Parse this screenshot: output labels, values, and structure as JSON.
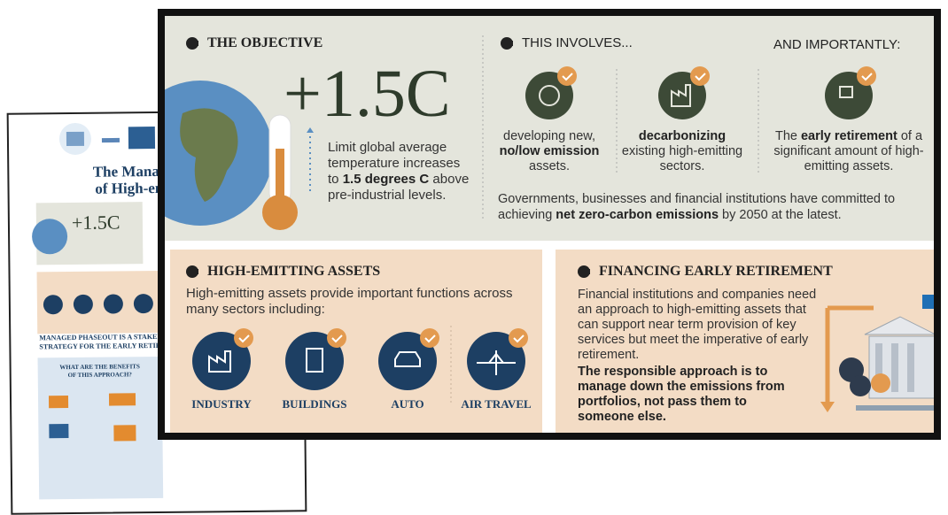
{
  "back_page": {
    "title_lines": [
      "The Manage",
      "of High-emi"
    ],
    "stat": "+1.5C",
    "banner_lines": [
      "MANAGED PHASEOUT IS A STAKEHO",
      "STRATEGY FOR THE EARLY RETIRE"
    ],
    "benefits_heading": [
      "WHAT ARE THE BENEFITS",
      "OF THIS APPROACH?"
    ]
  },
  "objective": {
    "heading": "THE OBJECTIVE",
    "stat": "+1.5C",
    "text": [
      {
        "text": "Limit global average temperature increases to "
      },
      {
        "text": "1.5 degrees C",
        "bold": true
      },
      {
        "text": " above pre-industrial levels."
      }
    ]
  },
  "involves": {
    "heading": "THIS INVOLVES...",
    "heading_right": "AND IMPORTANTLY:",
    "items": [
      [
        {
          "text": "developing new, "
        },
        {
          "text": "no/low emission",
          "bold": true
        },
        {
          "text": " assets."
        }
      ],
      [
        {
          "text": "decarbonizing",
          "bold": true
        },
        {
          "text": " existing high-emitting sectors."
        }
      ],
      [
        {
          "text": "The "
        },
        {
          "text": "early retirement",
          "bold": true
        },
        {
          "text": " of a significant amount of high-emitting assets."
        }
      ]
    ],
    "footer": [
      {
        "text": "Governments, businesses and financial institutions have committed to achieving "
      },
      {
        "text": "net zero-carbon emissions",
        "bold": true
      },
      {
        "text": " by 2050 at the latest."
      }
    ]
  },
  "high_emitting": {
    "heading": "HIGH-EMITTING ASSETS",
    "text": "High-emitting assets provide important functions across many sectors including:",
    "sectors": [
      "INDUSTRY",
      "BUILDINGS",
      "AUTO",
      "AIR TRAVEL"
    ]
  },
  "financing": {
    "heading": "FINANCING EARLY RETIREMENT",
    "text": "Financial institutions and companies need an approach to high-emitting assets that can support near term provision of key services but meet the imperative of early retirement.",
    "bold_text": "The responsible approach is to manage down the emissions from portfolios, not pass them to someone else."
  }
}
